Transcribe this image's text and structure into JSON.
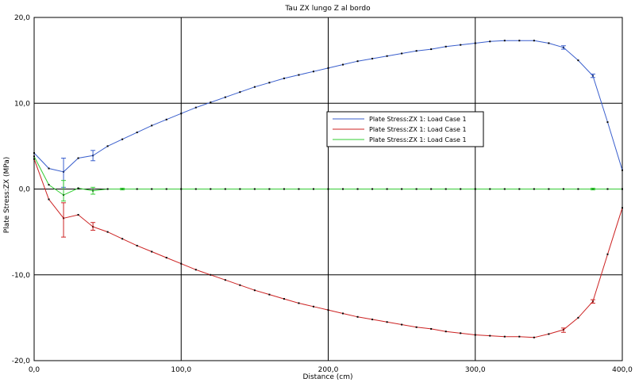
{
  "chart_data": {
    "type": "line",
    "title": "Tau ZX lungo Z al bordo",
    "xlabel": "Distance (cm)",
    "ylabel": "Plate Stress:ZX (MPa)",
    "xlim": [
      0,
      400
    ],
    "ylim": [
      -20,
      20
    ],
    "x_ticks": [
      0,
      100,
      200,
      300,
      400
    ],
    "y_ticks": [
      20,
      10,
      0,
      -10,
      -20
    ],
    "x_tick_labels": [
      "0,0",
      "100,0",
      "200,0",
      "300,0",
      "400,0"
    ],
    "y_tick_labels": [
      "20,0",
      "10,0",
      "0,0",
      "-10,0",
      "-20,0"
    ],
    "grid": true,
    "legend_position": "center-right",
    "series": [
      {
        "name": "Plate Stress:ZX  1: Load Case 1",
        "color": "#3a5fcd",
        "x": [
          0,
          10,
          20,
          30,
          40,
          50,
          60,
          70,
          80,
          90,
          100,
          110,
          120,
          130,
          140,
          150,
          160,
          170,
          180,
          190,
          200,
          210,
          220,
          230,
          240,
          250,
          260,
          270,
          280,
          290,
          300,
          310,
          320,
          330,
          340,
          350,
          360,
          370,
          380,
          390,
          400
        ],
        "values": [
          4.2,
          2.4,
          2.0,
          3.6,
          3.9,
          5.0,
          5.8,
          6.6,
          7.4,
          8.1,
          8.8,
          9.5,
          10.1,
          10.7,
          11.3,
          11.9,
          12.4,
          12.9,
          13.3,
          13.7,
          14.1,
          14.5,
          14.9,
          15.2,
          15.5,
          15.8,
          16.1,
          16.3,
          16.6,
          16.8,
          17.0,
          17.2,
          17.3,
          17.3,
          17.3,
          17.0,
          16.5,
          15.0,
          13.2,
          7.8,
          2.2
        ],
        "error_bars": [
          {
            "x": 20,
            "low": 0.2,
            "high": 3.6
          },
          {
            "x": 40,
            "low": 3.3,
            "high": 4.5
          },
          {
            "x": 360,
            "low": 16.3,
            "high": 16.7
          },
          {
            "x": 380,
            "low": 13.0,
            "high": 13.4
          }
        ]
      },
      {
        "name": "Plate Stress:ZX  1: Load Case 1",
        "color": "#cc2222",
        "x": [
          0,
          10,
          20,
          30,
          40,
          50,
          60,
          70,
          80,
          90,
          100,
          110,
          120,
          130,
          140,
          150,
          160,
          170,
          180,
          190,
          200,
          210,
          220,
          230,
          240,
          250,
          260,
          270,
          280,
          290,
          300,
          310,
          320,
          330,
          340,
          350,
          360,
          370,
          380,
          390,
          400
        ],
        "values": [
          3.5,
          -1.2,
          -3.4,
          -3.0,
          -4.4,
          -5.0,
          -5.8,
          -6.6,
          -7.3,
          -8.0,
          -8.7,
          -9.4,
          -10.0,
          -10.6,
          -11.2,
          -11.8,
          -12.3,
          -12.8,
          -13.3,
          -13.7,
          -14.1,
          -14.5,
          -14.9,
          -15.2,
          -15.5,
          -15.8,
          -16.1,
          -16.3,
          -16.6,
          -16.8,
          -17.0,
          -17.1,
          -17.2,
          -17.2,
          -17.3,
          -16.9,
          -16.4,
          -15.0,
          -13.1,
          -7.6,
          -2.2
        ],
        "error_bars": [
          {
            "x": 20,
            "low": -5.6,
            "high": -1.6
          },
          {
            "x": 40,
            "low": -4.8,
            "high": -3.9
          },
          {
            "x": 360,
            "low": -16.7,
            "high": -16.2
          },
          {
            "x": 380,
            "low": -13.3,
            "high": -12.9
          }
        ]
      },
      {
        "name": "Plate Stress:ZX  1: Load Case 1",
        "color": "#33cc33",
        "x": [
          0,
          10,
          20,
          30,
          40,
          50,
          60,
          70,
          80,
          90,
          100,
          110,
          120,
          130,
          140,
          150,
          160,
          170,
          180,
          190,
          200,
          210,
          220,
          230,
          240,
          250,
          260,
          270,
          280,
          290,
          300,
          310,
          320,
          330,
          340,
          350,
          360,
          370,
          380,
          390,
          400
        ],
        "values": [
          3.8,
          0.5,
          -0.7,
          0.1,
          -0.2,
          0,
          0,
          0,
          0,
          0,
          0,
          0,
          0,
          0,
          0,
          0,
          0,
          0,
          0,
          0,
          0,
          0,
          0,
          0,
          0,
          0,
          0,
          0,
          0,
          0,
          0,
          0,
          0,
          0,
          0,
          0,
          0,
          0,
          0,
          0,
          0
        ],
        "error_bars": [
          {
            "x": 20,
            "low": -1.4,
            "high": 1.0
          },
          {
            "x": 40,
            "low": -0.6,
            "high": 0.2
          },
          {
            "x": 60,
            "low": -0.1,
            "high": 0.1
          },
          {
            "x": 380,
            "low": -0.1,
            "high": 0.1
          }
        ]
      }
    ]
  }
}
